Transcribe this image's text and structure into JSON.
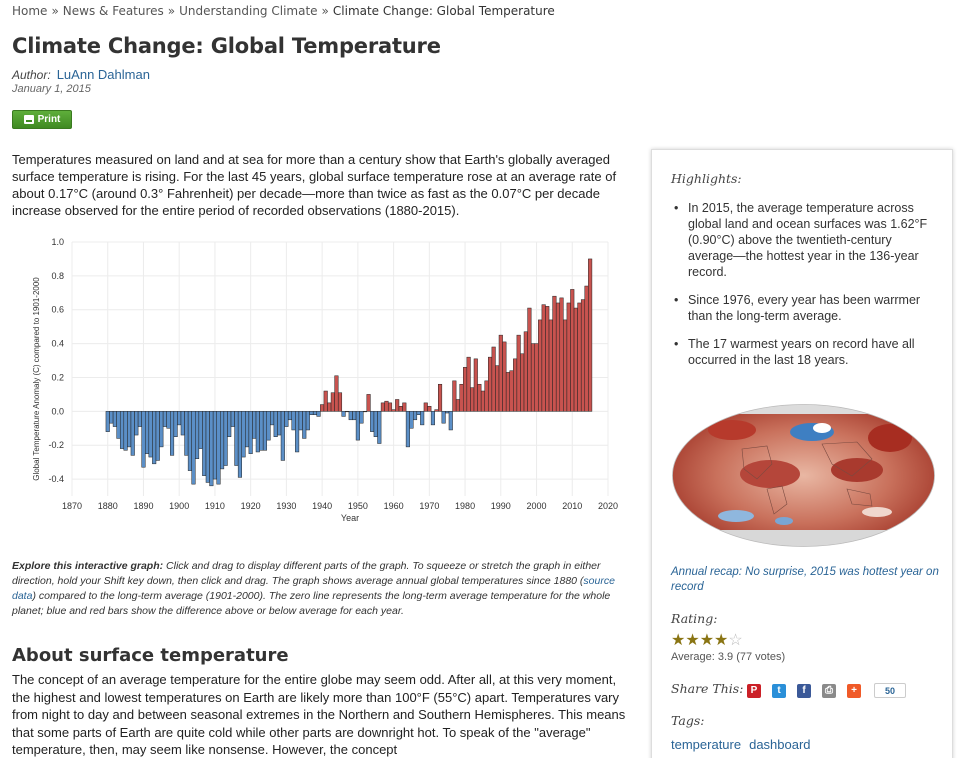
{
  "breadcrumb": {
    "items": [
      "Home",
      "News & Features",
      "Understanding Climate"
    ],
    "current": "Climate Change: Global Temperature",
    "separator": "»"
  },
  "article": {
    "title": "Climate Change: Global Temperature",
    "author_label": "Author:",
    "author_name": "LuAnn Dahlman",
    "date": "January 1, 2015",
    "print_label": "Print",
    "intro": "Temperatures measured on land and at sea for more than a century show that Earth's globally averaged surface temperature is rising. For the last 45 years, global surface temperature rose at an average rate of about 0.17°C (around 0.3° Fahrenheit) per decade—more than twice as fast as the 0.07°C per decade increase observed for the entire period of recorded observations (1880-2015).",
    "explore_lead": "Explore this interactive graph:",
    "explore_1": " Click and drag to display different parts of the graph. To squeeze or stretch the graph in either direction, hold your Shift key down, then click and drag. The graph shows average annual global temperatures since 1880  (",
    "explore_link": "source data",
    "explore_2": ") compared to the long-term average (1901-2000). The zero line represents the long-term average temperature for the whole planet; blue and red bars show the difference above or below average for each year.",
    "about_title": "About surface temperature",
    "about_text": "The concept of an average temperature for the entire globe may seem odd. After all, at this very moment, the highest and lowest temperatures on Earth are likely more than 100°F (55°C) apart. Temperatures vary from night to day and between seasonal extremes in the Northern and Southern Hemispheres. This means that some parts of Earth are quite cold while other parts are downright hot. To speak of the \"average\" temperature, then, may seem like nonsense. However, the concept"
  },
  "sidebar": {
    "highlights_title": "Highlights:",
    "highlights": [
      "In 2015, the average temperature across global land and ocean surfaces was 1.62°F (0.90°C) above the twentieth-century average—the hottest year in the 136-year record.",
      "Since 1976, every year has been warrmer than the long-term average.",
      "The 17 warmest years on record have all occurred in the last 18 years."
    ],
    "recap_link": "Annual recap: No surprise, 2015 was hottest year on record",
    "rating_label": "Rating:",
    "rating_value": 3.9,
    "average_text": "Average: 3.9 (77 votes)",
    "share_label": "Share This:",
    "share_icons": [
      {
        "name": "pinterest-icon",
        "glyph": "P",
        "color": "#cb2027"
      },
      {
        "name": "twitter-icon",
        "glyph": "t",
        "color": "#2a8fd8"
      },
      {
        "name": "facebook-icon",
        "glyph": "f",
        "color": "#3b5998"
      },
      {
        "name": "print-icon",
        "glyph": "⎙",
        "color": "#8a8a8a"
      },
      {
        "name": "plus-icon",
        "glyph": "+",
        "color": "#f05a28"
      }
    ],
    "share_count": "50",
    "tags_label": "Tags:",
    "tags": [
      "temperature",
      "dashboard"
    ]
  },
  "colors": {
    "positive_bar": "#c8534f",
    "negative_bar": "#5b8fc7",
    "link": "#2a6496"
  },
  "chart_data": {
    "type": "bar",
    "xlabel": "Year",
    "ylabel": "Global Temperature Anomaly (C) compared to 1901-2000",
    "xlim": [
      1870,
      2020
    ],
    "ylim": [
      -0.5,
      1.0
    ],
    "xticks": [
      1870,
      1880,
      1890,
      1900,
      1910,
      1920,
      1930,
      1940,
      1950,
      1960,
      1970,
      1980,
      1990,
      2000,
      2010,
      2020
    ],
    "yticks": [
      -0.4,
      -0.2,
      0.0,
      0.2,
      0.4,
      0.6,
      0.8,
      1.0
    ],
    "ytick_labels": [
      "-0.4",
      "-0.2",
      "0.0",
      "0.2",
      "0.4",
      "0.6",
      "0.8",
      "1.0"
    ],
    "x_start": 1880,
    "values": [
      -0.12,
      -0.07,
      -0.09,
      -0.16,
      -0.22,
      -0.23,
      -0.21,
      -0.26,
      -0.14,
      -0.09,
      -0.33,
      -0.25,
      -0.27,
      -0.31,
      -0.29,
      -0.21,
      -0.09,
      -0.1,
      -0.26,
      -0.15,
      -0.08,
      -0.14,
      -0.26,
      -0.35,
      -0.43,
      -0.28,
      -0.22,
      -0.38,
      -0.42,
      -0.44,
      -0.4,
      -0.43,
      -0.34,
      -0.32,
      -0.15,
      -0.09,
      -0.32,
      -0.39,
      -0.27,
      -0.21,
      -0.25,
      -0.16,
      -0.24,
      -0.23,
      -0.23,
      -0.17,
      -0.08,
      -0.15,
      -0.14,
      -0.29,
      -0.09,
      -0.05,
      -0.11,
      -0.24,
      -0.11,
      -0.16,
      -0.11,
      -0.02,
      -0.02,
      -0.03,
      0.04,
      0.12,
      0.05,
      0.11,
      0.21,
      0.11,
      -0.03,
      0.0,
      -0.05,
      -0.05,
      -0.17,
      -0.07,
      0.0,
      0.1,
      -0.12,
      -0.15,
      -0.19,
      0.05,
      0.06,
      0.05,
      0.01,
      0.07,
      0.03,
      0.05,
      -0.21,
      -0.1,
      -0.05,
      -0.02,
      -0.08,
      0.05,
      0.03,
      -0.08,
      0.01,
      0.16,
      -0.07,
      -0.01,
      -0.11,
      0.18,
      0.07,
      0.16,
      0.26,
      0.32,
      0.14,
      0.31,
      0.16,
      0.12,
      0.18,
      0.32,
      0.38,
      0.27,
      0.45,
      0.41,
      0.23,
      0.24,
      0.31,
      0.45,
      0.34,
      0.47,
      0.61,
      0.4,
      0.4,
      0.54,
      0.63,
      0.62,
      0.54,
      0.68,
      0.64,
      0.67,
      0.54,
      0.64,
      0.72,
      0.61,
      0.64,
      0.66,
      0.74,
      0.9
    ]
  }
}
